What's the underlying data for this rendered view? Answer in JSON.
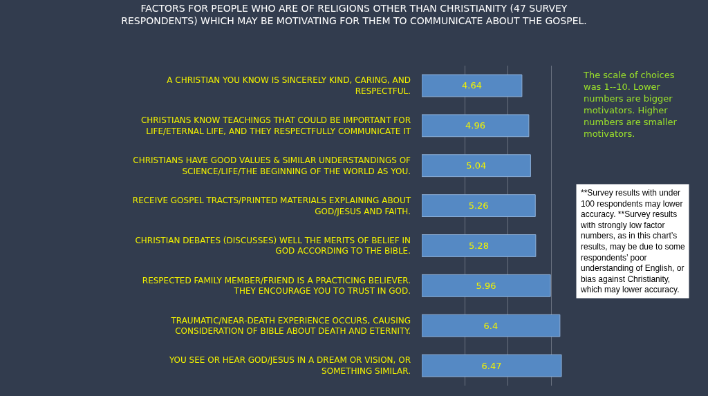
{
  "chart_data": {
    "type": "bar",
    "orientation": "horizontal",
    "title": "FACTORS FOR PEOPLE WHO ARE OF RELIGIONS OTHER THAN CHRISTIANITY (47 SURVEY RESPONDENTS) WHICH MAY BE MOTIVATING FOR THEM TO COMMUNICATE ABOUT THE GOSPEL.",
    "categories": [
      "A CHRISTIAN YOU KNOW IS SINCERELY KIND, CARING, AND RESPECTFUL.",
      "CHRISTIANS KNOW TEACHINGS THAT COULD BE IMPORTANT FOR LIFE/ETERNAL LIFE, AND THEY RESPECTFULLY COMMUNICATE IT",
      "CHRISTIANS HAVE GOOD VALUES & SIMILAR UNDERSTANDINGS OF SCIENCE/LIFE/THE BEGINNING OF THE WORLD AS YOU.",
      "RECEIVE GOSPEL TRACTS/PRINTED MATERIALS EXPLAINING ABOUT GOD/JESUS AND FAITH.",
      "CHRISTIAN DEBATES (DISCUSSES) WELL THE MERITS OF BELIEF IN GOD ACCORDING TO THE BIBLE.",
      "RESPECTED FAMILY MEMBER/FRIEND IS A PRACTICING BELIEVER. THEY ENCOURAGE YOU TO TRUST IN GOD.",
      "TRAUMATIC/NEAR-DEATH EXPERIENCE OCCURS, CAUSING CONSIDERATION OF BIBLE ABOUT DEATH AND ETERNITY.",
      "YOU SEE OR HEAR GOD/JESUS IN A DREAM OR VISION, OR SOMETHING SIMILAR."
    ],
    "values": [
      4.64,
      4.96,
      5.04,
      5.26,
      5.28,
      5.96,
      6.4,
      6.47
    ],
    "color": "#5589c4",
    "data_labels": true,
    "grid": "x",
    "annotations": [
      "The scale of choices was 1--10. Lower numbers are bigger motivators. Higher numbers are smaller motivators.",
      "**Survey results with under 100 respondents may lower accuracy. **Survey results with strongly low factor numbers, as in this chart’s results, may be due to some respondents’ poor understanding of English, or bias against Christianity, which may lower accuracy."
    ]
  }
}
